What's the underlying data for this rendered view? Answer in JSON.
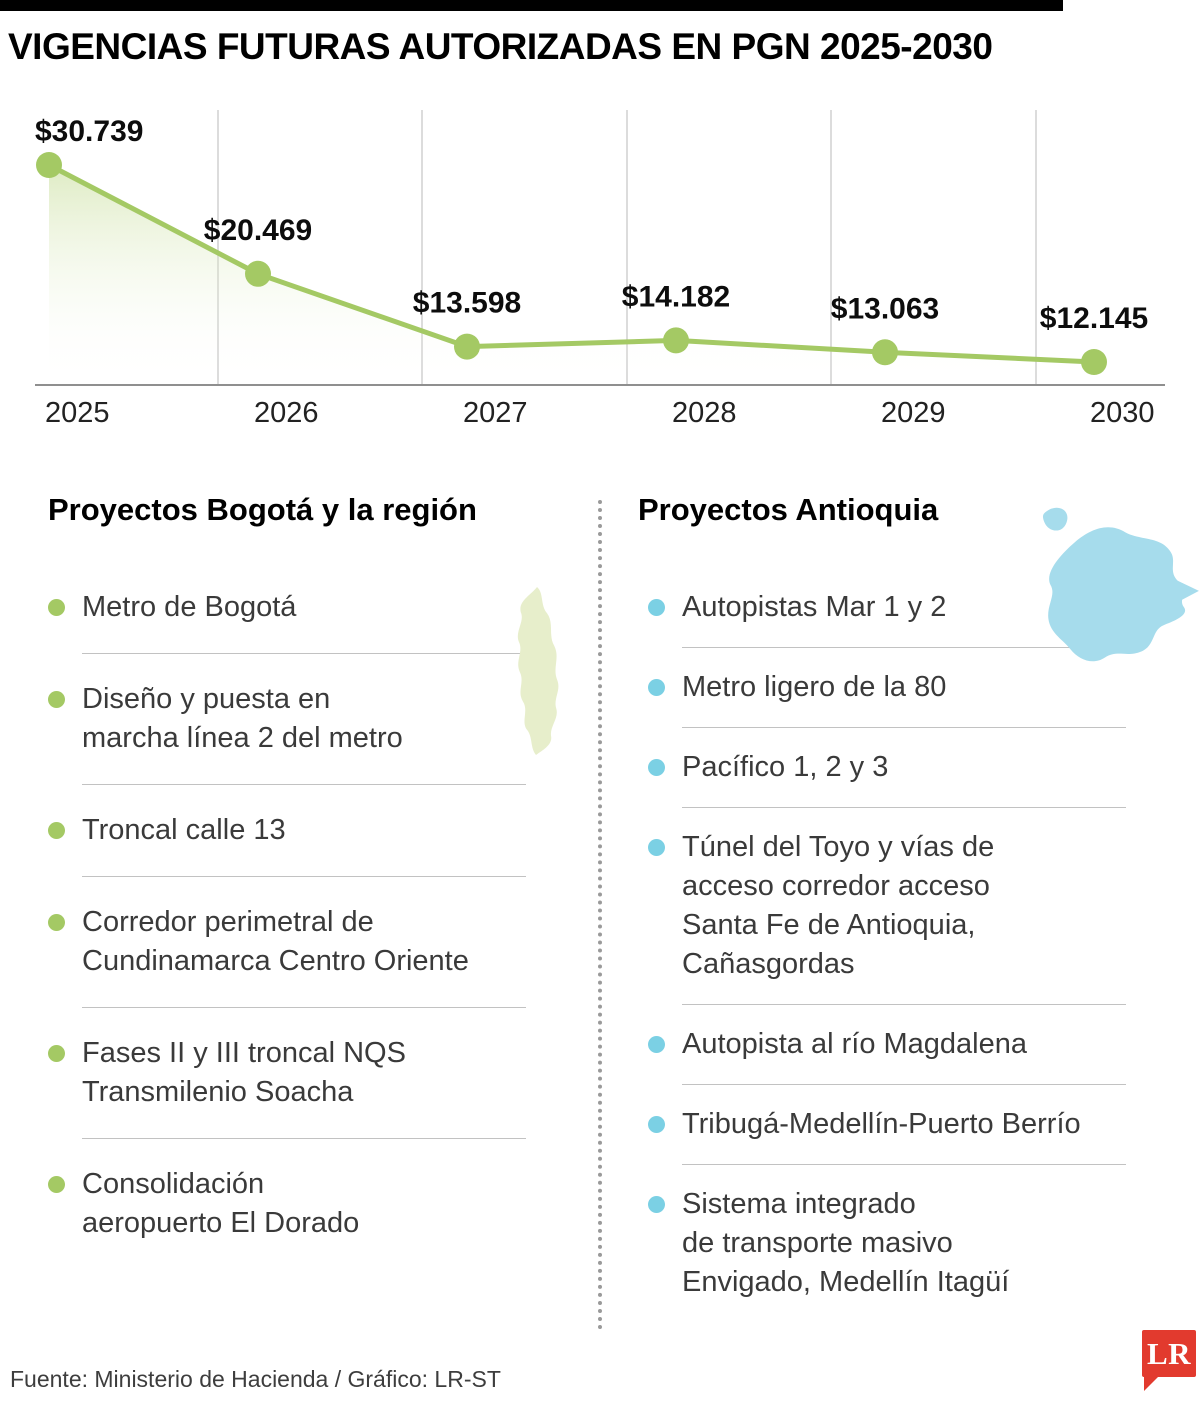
{
  "title": "VIGENCIAS FUTURAS AUTORIZADAS EN PGN 2025-2030",
  "chart_data": {
    "type": "area",
    "title": "Vigencias futuras autorizadas en PGN 2025-2030",
    "categories": [
      "2025",
      "2026",
      "2027",
      "2028",
      "2029",
      "2030"
    ],
    "values": [
      30739,
      20469,
      13598,
      14182,
      13063,
      12145
    ],
    "value_labels": [
      "$30.739",
      "$20.469",
      "$13.598",
      "$14.182",
      "$13.063",
      "$12.145"
    ],
    "xlabel": "",
    "ylabel": "",
    "ylim": [
      12145,
      30739
    ],
    "grid": "vertical-only",
    "legend": "none",
    "line_color": "#a4c964",
    "point_color": "#a4c964",
    "fill_top_color": "#c3db92",
    "axis_color": "#8f8f8f"
  },
  "sections": {
    "bogota": {
      "heading": "Proyectos Bogotá y la región",
      "bullet_color": "#a4c964",
      "map_color": "#e7eecb",
      "items": [
        "Metro de Bogotá",
        "Diseño y puesta en\nmarcha línea 2 del metro",
        "Troncal calle 13",
        "Corredor perimetral de\nCundinamarca Centro Oriente",
        "Fases II y III troncal NQS\nTransmilenio Soacha",
        "Consolidación\naeropuerto El Dorado"
      ]
    },
    "antioquia": {
      "heading": "Proyectos Antioquia",
      "bullet_color": "#7bd0e4",
      "map_color": "#a6dcec",
      "items": [
        "Autopistas Mar 1 y 2",
        "Metro ligero de la 80",
        "Pacífico 1, 2 y 3",
        "Túnel del Toyo y vías de\nacceso corredor acceso\nSanta Fe de Antioquia,\nCañasgordas",
        "Autopista al río Magdalena",
        "Tribugá-Medellín-Puerto Berrío",
        "Sistema integrado\nde transporte masivo\nEnvigado, Medellín Itagüí"
      ]
    }
  },
  "footer": {
    "source": "Fuente: Ministerio de Hacienda / Gráfico: LR-ST",
    "logo_text": "LR",
    "logo_color": "#e23a2e"
  }
}
